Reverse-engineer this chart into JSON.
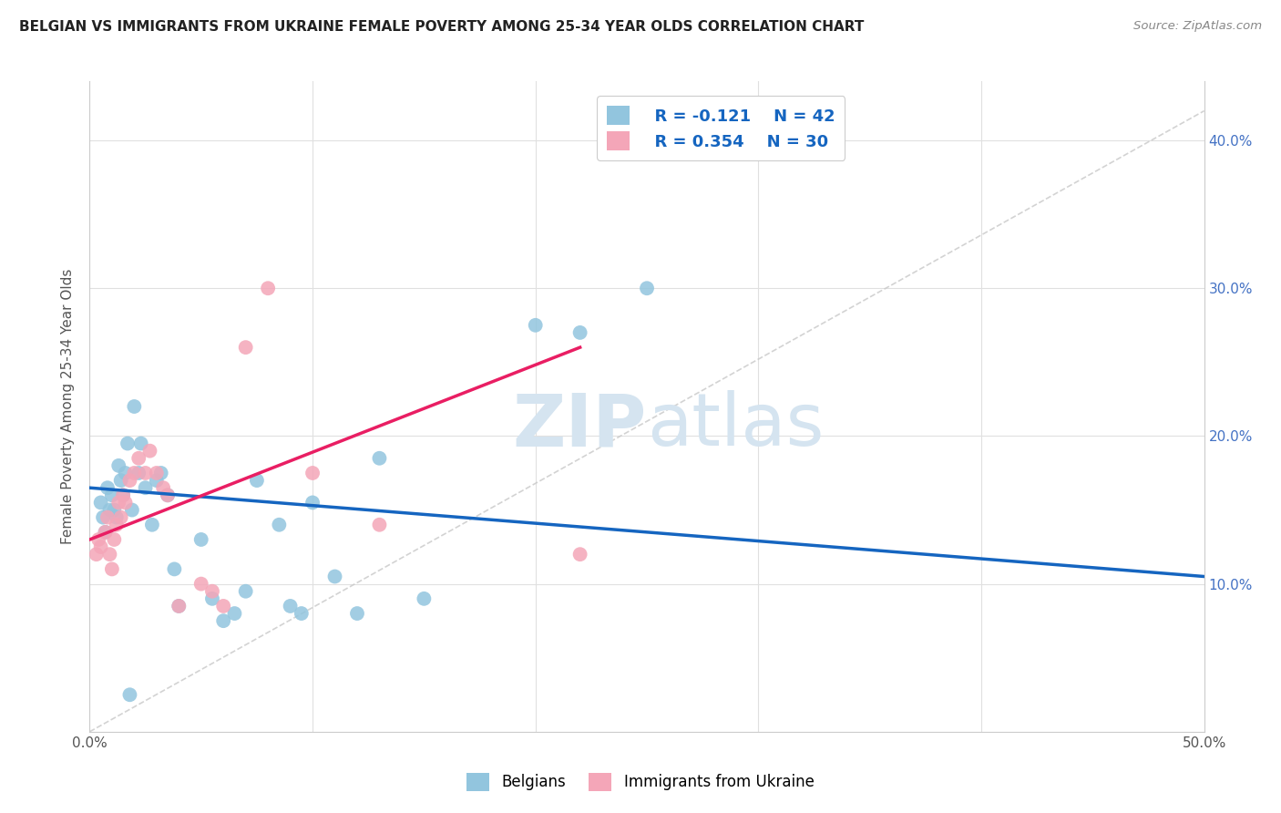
{
  "title": "BELGIAN VS IMMIGRANTS FROM UKRAINE FEMALE POVERTY AMONG 25-34 YEAR OLDS CORRELATION CHART",
  "source": "Source: ZipAtlas.com",
  "ylabel": "Female Poverty Among 25-34 Year Olds",
  "xlim": [
    0.0,
    0.5
  ],
  "ylim": [
    -0.02,
    0.44
  ],
  "plot_ylim": [
    0.0,
    0.44
  ],
  "xticks": [
    0.0,
    0.1,
    0.2,
    0.3,
    0.4,
    0.5
  ],
  "yticks_right": [
    0.1,
    0.2,
    0.3,
    0.4
  ],
  "xticklabels": [
    "0.0%",
    "",
    "",
    "",
    "",
    "50.0%"
  ],
  "yticklabels_right": [
    "10.0%",
    "20.0%",
    "30.0%",
    "40.0%"
  ],
  "legend_r_blue": "R = -0.121",
  "legend_n_blue": "N = 42",
  "legend_r_pink": "R = 0.354",
  "legend_n_pink": "N = 30",
  "belgians_x": [
    0.005,
    0.006,
    0.007,
    0.008,
    0.009,
    0.01,
    0.011,
    0.012,
    0.013,
    0.014,
    0.015,
    0.016,
    0.017,
    0.018,
    0.019,
    0.02,
    0.022,
    0.023,
    0.025,
    0.028,
    0.03,
    0.032,
    0.035,
    0.038,
    0.04,
    0.05,
    0.055,
    0.06,
    0.065,
    0.07,
    0.075,
    0.085,
    0.09,
    0.095,
    0.1,
    0.11,
    0.12,
    0.13,
    0.15,
    0.2,
    0.22,
    0.25
  ],
  "belgians_y": [
    0.155,
    0.145,
    0.135,
    0.165,
    0.15,
    0.16,
    0.15,
    0.145,
    0.18,
    0.17,
    0.16,
    0.175,
    0.195,
    0.025,
    0.15,
    0.22,
    0.175,
    0.195,
    0.165,
    0.14,
    0.17,
    0.175,
    0.16,
    0.11,
    0.085,
    0.13,
    0.09,
    0.075,
    0.08,
    0.095,
    0.17,
    0.14,
    0.085,
    0.08,
    0.155,
    0.105,
    0.08,
    0.185,
    0.09,
    0.275,
    0.27,
    0.3
  ],
  "ukraine_x": [
    0.003,
    0.004,
    0.005,
    0.007,
    0.008,
    0.009,
    0.01,
    0.011,
    0.012,
    0.013,
    0.014,
    0.015,
    0.016,
    0.018,
    0.02,
    0.022,
    0.025,
    0.027,
    0.03,
    0.033,
    0.035,
    0.04,
    0.05,
    0.055,
    0.06,
    0.07,
    0.08,
    0.1,
    0.13,
    0.22
  ],
  "ukraine_y": [
    0.12,
    0.13,
    0.125,
    0.135,
    0.145,
    0.12,
    0.11,
    0.13,
    0.14,
    0.155,
    0.145,
    0.16,
    0.155,
    0.17,
    0.175,
    0.185,
    0.175,
    0.19,
    0.175,
    0.165,
    0.16,
    0.085,
    0.1,
    0.095,
    0.085,
    0.26,
    0.3,
    0.175,
    0.14,
    0.12
  ],
  "blue_scatter_color": "#92c5de",
  "pink_scatter_color": "#f4a6b8",
  "trendline_blue_color": "#1565C0",
  "trendline_pink_color": "#E91E63",
  "diagonal_color": "#c8c8c8",
  "watermark_color": "#d5e4f0",
  "background_color": "#ffffff",
  "grid_color": "#e0e0e0",
  "right_axis_color": "#4472C4",
  "trendline_blue_x0": 0.0,
  "trendline_blue_y0": 0.165,
  "trendline_blue_x1": 0.5,
  "trendline_blue_y1": 0.105,
  "trendline_pink_x0": 0.0,
  "trendline_pink_y0": 0.13,
  "trendline_pink_x1": 0.22,
  "trendline_pink_y1": 0.26
}
